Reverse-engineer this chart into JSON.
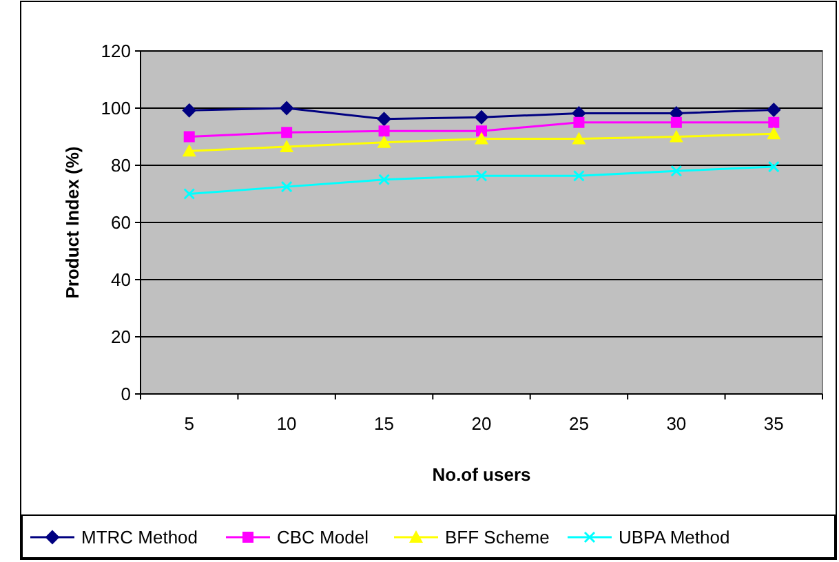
{
  "chart_data": {
    "type": "line",
    "xlabel": "No.of users",
    "ylabel": "Product Index (%)",
    "categories": [
      "5",
      "10",
      "15",
      "20",
      "25",
      "30",
      "35"
    ],
    "ylim": [
      0,
      120
    ],
    "yticks": [
      0,
      20,
      40,
      60,
      80,
      100,
      120
    ],
    "grid": "y",
    "legend": "bottom",
    "series": [
      {
        "name": "MTRC Method",
        "color": "#000080",
        "marker": "diamond",
        "values": [
          99.2,
          100,
          96.2,
          96.8,
          98.2,
          98.2,
          99.4
        ]
      },
      {
        "name": "CBC Model",
        "color": "#ff00ff",
        "marker": "square",
        "values": [
          90,
          91.5,
          92,
          92,
          95,
          95,
          95
        ]
      },
      {
        "name": "BFF Scheme",
        "color": "#ffff00",
        "marker": "triangle",
        "values": [
          85,
          86.5,
          88,
          89.3,
          89.3,
          90,
          91
        ]
      },
      {
        "name": "UBPA Method",
        "color": "#00ffff",
        "marker": "cross",
        "values": [
          70,
          72.5,
          75,
          76.3,
          76.3,
          78,
          79.5
        ]
      }
    ]
  }
}
